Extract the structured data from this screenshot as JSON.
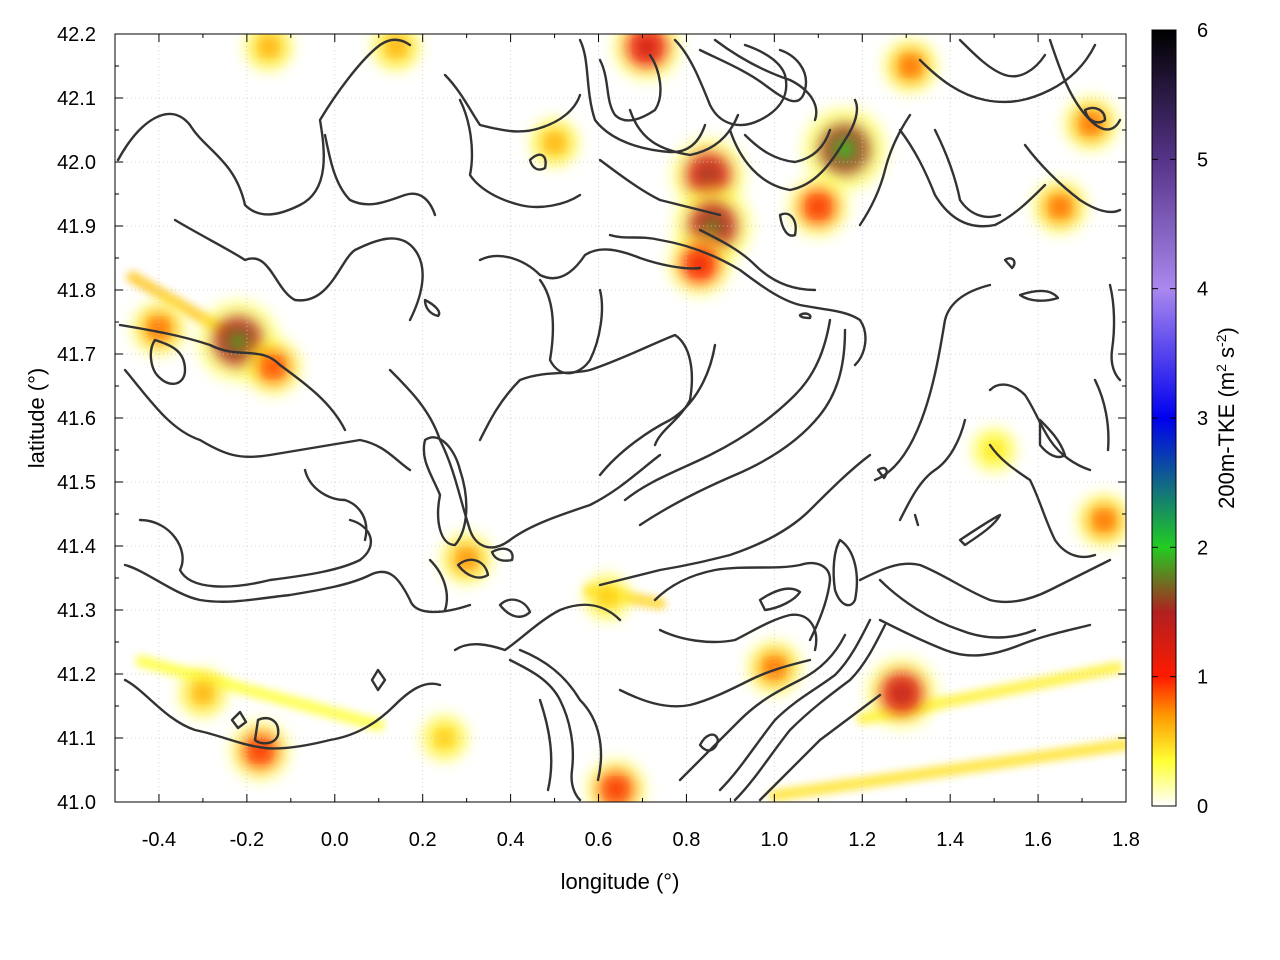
{
  "chart_data": {
    "type": "heatmap",
    "title": "",
    "xlabel": "longitude (°)",
    "ylabel": "latitude (°)",
    "xlim": [
      -0.5,
      1.8
    ],
    "ylim": [
      41.0,
      42.2
    ],
    "xticks": [
      -0.4,
      -0.2,
      0.0,
      0.2,
      0.4,
      0.6,
      0.8,
      1.0,
      1.2,
      1.4,
      1.6,
      1.8
    ],
    "xtick_labels": [
      "-0.4",
      "-0.2",
      "0.0",
      "0.2",
      "0.4",
      "0.6",
      "0.8",
      "1.0",
      "1.2",
      "1.4",
      "1.6",
      "1.8"
    ],
    "yticks": [
      41.0,
      41.1,
      41.2,
      41.3,
      41.4,
      41.5,
      41.6,
      41.7,
      41.8,
      41.9,
      42.0,
      42.1,
      42.2
    ],
    "ytick_labels": [
      "41.0",
      "41.1",
      "41.2",
      "41.3",
      "41.4",
      "41.5",
      "41.6",
      "41.7",
      "41.8",
      "41.9",
      "42.0",
      "42.1",
      "42.2"
    ],
    "grid": true,
    "colorbar": {
      "label": "200m-TKE (m² s⁻²)",
      "label_main": "200m-TKE (m",
      "label_sup1": "2",
      "label_mid": " s",
      "label_sup2": "-2",
      "label_end": ")",
      "range": [
        0,
        6
      ],
      "ticks": [
        0,
        1,
        2,
        3,
        4,
        5,
        6
      ],
      "tick_labels": [
        "0",
        "1",
        "2",
        "3",
        "4",
        "5",
        "6"
      ],
      "stops": [
        {
          "value": 0.0,
          "color": "#ffffff"
        },
        {
          "value": 0.35,
          "color": "#ffff33"
        },
        {
          "value": 0.7,
          "color": "#ff9900"
        },
        {
          "value": 1.0,
          "color": "#ff1a00"
        },
        {
          "value": 1.5,
          "color": "#b02020"
        },
        {
          "value": 2.0,
          "color": "#22cc22"
        },
        {
          "value": 3.0,
          "color": "#0000ee"
        },
        {
          "value": 4.0,
          "color": "#aa88ee"
        },
        {
          "value": 5.0,
          "color": "#553388"
        },
        {
          "value": 6.0,
          "color": "#000000"
        }
      ]
    },
    "tke_features": [
      {
        "lon": -0.22,
        "lat": 41.72,
        "value": 1.9
      },
      {
        "lon": -0.14,
        "lat": 41.68,
        "value": 1.0
      },
      {
        "lon": -0.4,
        "lat": 41.74,
        "value": 0.9
      },
      {
        "lon": -0.17,
        "lat": 41.08,
        "value": 1.1
      },
      {
        "lon": -0.3,
        "lat": 41.17,
        "value": 0.7
      },
      {
        "lon": 1.16,
        "lat": 42.02,
        "value": 2.0
      },
      {
        "lon": 1.1,
        "lat": 41.93,
        "value": 1.1
      },
      {
        "lon": 0.85,
        "lat": 41.98,
        "value": 1.6
      },
      {
        "lon": 0.86,
        "lat": 41.9,
        "value": 1.8
      },
      {
        "lon": 0.83,
        "lat": 41.84,
        "value": 1.2
      },
      {
        "lon": 1.29,
        "lat": 41.17,
        "value": 1.5
      },
      {
        "lon": 1.0,
        "lat": 41.21,
        "value": 0.9
      },
      {
        "lon": 0.64,
        "lat": 41.02,
        "value": 1.1
      },
      {
        "lon": 1.75,
        "lat": 41.44,
        "value": 0.9
      },
      {
        "lon": 1.65,
        "lat": 41.93,
        "value": 0.9
      },
      {
        "lon": 1.72,
        "lat": 42.06,
        "value": 0.9
      },
      {
        "lon": 1.31,
        "lat": 42.15,
        "value": 0.9
      },
      {
        "lon": 0.71,
        "lat": 42.18,
        "value": 1.4
      },
      {
        "lon": 0.14,
        "lat": 42.18,
        "value": 0.7
      },
      {
        "lon": -0.15,
        "lat": 42.18,
        "value": 0.7
      },
      {
        "lon": 0.3,
        "lat": 41.38,
        "value": 0.8
      },
      {
        "lon": 0.5,
        "lat": 42.03,
        "value": 0.7
      },
      {
        "lon": 0.25,
        "lat": 41.1,
        "value": 0.6
      },
      {
        "lon": 1.5,
        "lat": 41.55,
        "value": 0.5
      },
      {
        "lon": 0.62,
        "lat": 41.32,
        "value": 0.6
      }
    ],
    "wind_bands": [
      {
        "lon1": 1.0,
        "lat1": 41.01,
        "lon2": 1.8,
        "lat2": 41.09,
        "value": 0.45
      },
      {
        "lon1": 1.2,
        "lat1": 41.13,
        "lon2": 1.78,
        "lat2": 41.21,
        "value": 0.4
      },
      {
        "lon1": -0.46,
        "lat1": 41.82,
        "lon2": -0.16,
        "lat2": 41.7,
        "value": 0.55
      },
      {
        "lon1": 0.58,
        "lat1": 41.33,
        "lon2": 0.74,
        "lat2": 41.31,
        "value": 0.5
      },
      {
        "lon1": -0.44,
        "lat1": 41.22,
        "lon2": 0.1,
        "lat2": 41.12,
        "value": 0.35
      }
    ]
  }
}
